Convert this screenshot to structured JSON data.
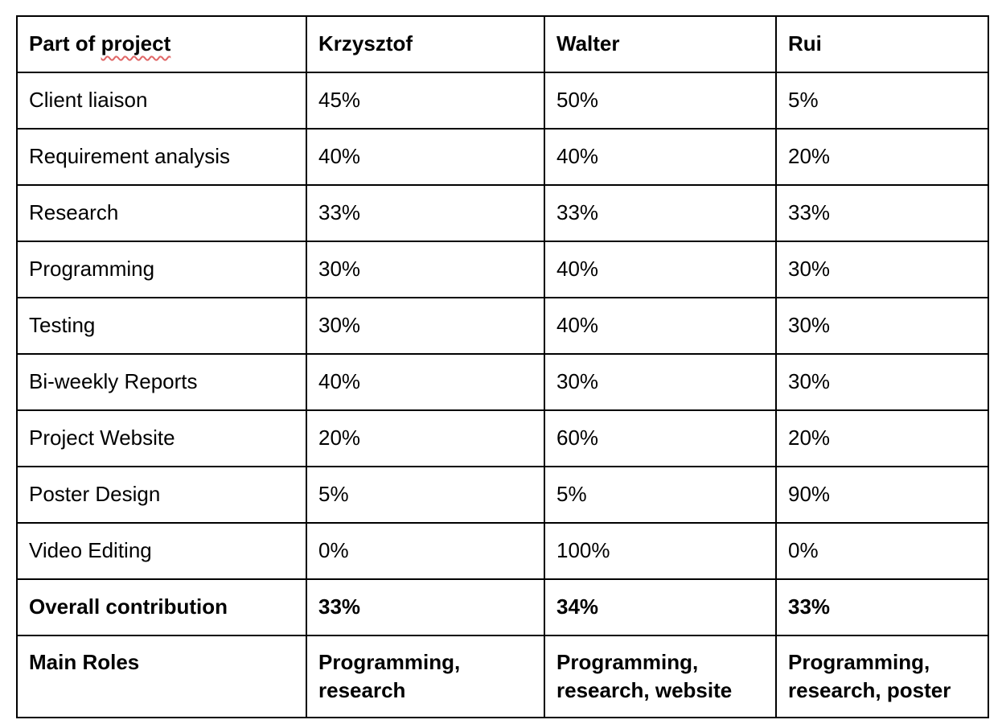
{
  "table": {
    "header": {
      "part_prefix": "Part of ",
      "part_flagged": "project",
      "members": [
        "Krzysztof",
        "Walter",
        "Rui"
      ]
    },
    "rows": [
      {
        "part": "Client liaison",
        "values": [
          "45%",
          "50%",
          "5%"
        ]
      },
      {
        "part": "Requirement analysis",
        "values": [
          "40%",
          "40%",
          "20%"
        ]
      },
      {
        "part": "Research",
        "values": [
          "33%",
          "33%",
          "33%"
        ]
      },
      {
        "part": "Programming",
        "values": [
          "30%",
          "40%",
          "30%"
        ]
      },
      {
        "part": "Testing",
        "values": [
          "30%",
          "40%",
          "30%"
        ]
      },
      {
        "part": "Bi-weekly Reports",
        "values": [
          "40%",
          "30%",
          "30%"
        ]
      },
      {
        "part": "Project Website",
        "values": [
          "20%",
          "60%",
          "20%"
        ]
      },
      {
        "part": "Poster Design",
        "values": [
          "5%",
          "5%",
          "90%"
        ]
      },
      {
        "part": "Video Editing",
        "values": [
          "0%",
          "100%",
          "0%"
        ]
      }
    ],
    "overall": {
      "label": "Overall contribution",
      "values": [
        "33%",
        "34%",
        "33%"
      ]
    },
    "roles": {
      "label": "Main Roles",
      "values": [
        [
          "Programming,",
          "research"
        ],
        [
          "Programming,",
          "research, website"
        ],
        [
          "Programming,",
          "research, poster"
        ]
      ]
    }
  },
  "colors": {
    "border": "#000000",
    "spellcheck_underline": "#e06666"
  }
}
